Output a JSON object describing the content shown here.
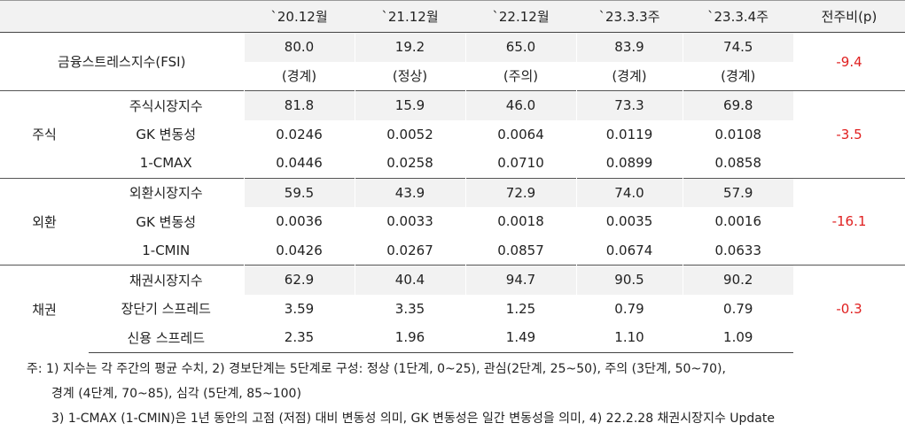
{
  "header": {
    "columns": [
      "`20.12월",
      "`21.12월",
      "`22.12월",
      "`23.3.3주",
      "`23.3.4주",
      "전주비(p)"
    ]
  },
  "table": {
    "groups": [
      {
        "label": "금융스트레스지수(FSI)",
        "change": "-9.4",
        "rows": [
          {
            "values": [
              "80.0",
              "19.2",
              "65.0",
              "83.9",
              "74.5"
            ]
          },
          {
            "values": [
              "(경계)",
              "(정상)",
              "(주의)",
              "(경계)",
              "(경계)"
            ]
          }
        ]
      },
      {
        "label": "주식",
        "change": "-3.5",
        "rows": [
          {
            "label": "주식시장지수",
            "values": [
              "81.8",
              "15.9",
              "46.0",
              "73.3",
              "69.8"
            ]
          },
          {
            "label": "GK 변동성",
            "values": [
              "0.0246",
              "0.0052",
              "0.0064",
              "0.0119",
              "0.0108"
            ]
          },
          {
            "label": "1-CMAX",
            "values": [
              "0.0446",
              "0.0258",
              "0.0710",
              "0.0899",
              "0.0858"
            ]
          }
        ]
      },
      {
        "label": "외환",
        "change": "-16.1",
        "rows": [
          {
            "label": "외환시장지수",
            "values": [
              "59.5",
              "43.9",
              "72.9",
              "74.0",
              "57.9"
            ]
          },
          {
            "label": "GK 변동성",
            "values": [
              "0.0036",
              "0.0033",
              "0.0018",
              "0.0035",
              "0.0016"
            ]
          },
          {
            "label": "1-CMIN",
            "values": [
              "0.0426",
              "0.0267",
              "0.0857",
              "0.0674",
              "0.0633"
            ]
          }
        ]
      },
      {
        "label": "채권",
        "change": "-0.3",
        "rows": [
          {
            "label": "채권시장지수",
            "values": [
              "62.9",
              "40.4",
              "94.7",
              "90.5",
              "90.2"
            ]
          },
          {
            "label": "장단기 스프레드",
            "values": [
              "3.59",
              "3.35",
              "1.25",
              "0.79",
              "0.79"
            ]
          },
          {
            "label": "신용 스프레드",
            "values": [
              "2.35",
              "1.96",
              "1.49",
              "1.10",
              "1.09"
            ]
          }
        ]
      }
    ]
  },
  "notes": [
    "주: 1) 지수는 각 주간의 평균 수치, 2) 경보단계는 5단계로 구성: 정상 (1단계, 0~25), 관심(2단계, 25~50), 주의 (3단계, 50~70),",
    "경계 (4단계, 70~85), 심각 (5단계, 85~100)",
    "3) 1-CMAX (1-CMIN)은 1년 동안의 고점 (저점) 대비 변동성 의미, GK 변동성은 일간 변동성을 의미, 4) 22.2.28 채권시장지수 Update"
  ]
}
